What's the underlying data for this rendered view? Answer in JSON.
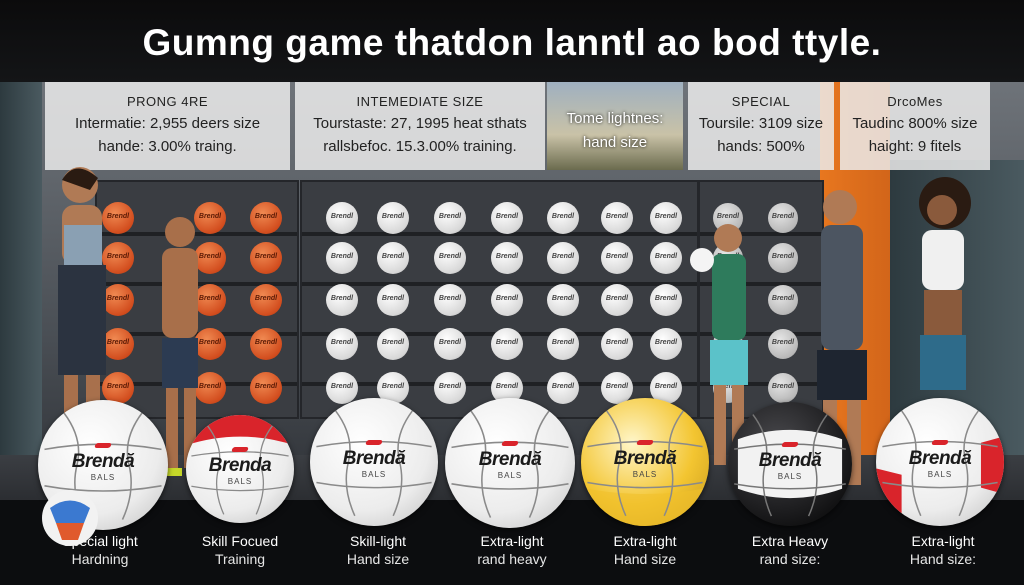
{
  "title": "Gumng game thatdon lanntl ao bod ttyle.",
  "panels": [
    {
      "heading": "PRONG 4RE",
      "line1": "Intermatie: 2,955 deers size",
      "line2": "hande: 3.00% traing."
    },
    {
      "heading": "INTEMEDIATE SIZE",
      "line1": "Tourstaste: 27, 1995 heat sthats",
      "line2": "rallsbefoc. 15.3.00% training."
    },
    {
      "heading": "",
      "line1": "Tome lightnes:",
      "line2": "hand size"
    },
    {
      "heading": "SPECIAL",
      "line1": "Toursile: 3109 size",
      "line2": "hands: 500%"
    },
    {
      "heading": "DrcoMes",
      "line1": "Taudinc 800% size",
      "line2": "haight: 9 fitels"
    }
  ],
  "rack_ball_label": "Brendl",
  "balls": [
    {
      "brand": "Brendă",
      "sub": "BALS",
      "style": "white",
      "caption1": "Special light",
      "caption2": "Hardning"
    },
    {
      "brand": "Brenda",
      "sub": "BALS",
      "style": "red",
      "caption1": "Skill Focued",
      "caption2": "Training"
    },
    {
      "brand": "Brendă",
      "sub": "BALS",
      "style": "white",
      "caption1": "Skill-light",
      "caption2": "Hand size"
    },
    {
      "brand": "Brendă",
      "sub": "BALS",
      "style": "white",
      "caption1": "Extra-light",
      "caption2": "rand heavy"
    },
    {
      "brand": "Brendă",
      "sub": "BALS",
      "style": "yellow",
      "caption1": "Extra-light",
      "caption2": "Hand size"
    },
    {
      "brand": "Brendă",
      "sub": "BALS",
      "style": "black",
      "caption1": "Extra Heavy",
      "caption2": "rand size:"
    },
    {
      "brand": "Brendă",
      "sub": "BALS",
      "style": "whitered",
      "caption1": "Extra-light",
      "caption2": "Hand size:"
    }
  ],
  "colors": {
    "accent_orange": "#e8771f",
    "ball_red": "#d9242b",
    "ball_yellow": "#f3c531",
    "ball_black": "#1d1d1f"
  }
}
